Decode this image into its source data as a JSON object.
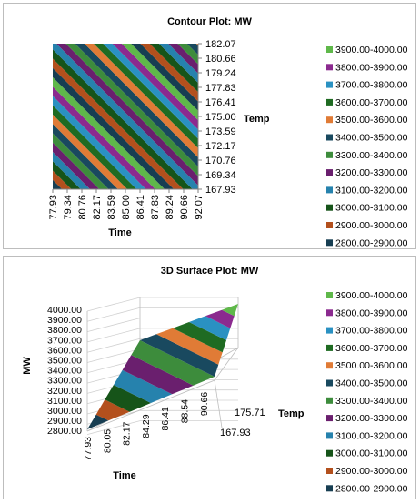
{
  "chart_data": [
    {
      "type": "contour",
      "title": "Contour Plot: MW",
      "xlabel": "Time",
      "ylabel": "Temp",
      "x_ticks": [
        "77.93",
        "79.34",
        "80.76",
        "82.17",
        "83.59",
        "85.00",
        "86.41",
        "87.83",
        "89.24",
        "90.66",
        "92.07"
      ],
      "y_ticks": [
        "182.07",
        "180.66",
        "179.24",
        "177.83",
        "176.41",
        "175.00",
        "173.59",
        "172.17",
        "170.76",
        "169.34",
        "167.93"
      ],
      "xlim": [
        77.93,
        92.07
      ],
      "ylim": [
        167.93,
        182.07
      ],
      "bands": [
        {
          "name": "3900.00-4000.00",
          "color": "#5fb84a"
        },
        {
          "name": "3800.00-3900.00",
          "color": "#8b2a8f"
        },
        {
          "name": "3700.00-3800.00",
          "color": "#2a91c2"
        },
        {
          "name": "3600.00-3700.00",
          "color": "#1f6b22"
        },
        {
          "name": "3500.00-3600.00",
          "color": "#e07b36"
        },
        {
          "name": "3400.00-3500.00",
          "color": "#19495f"
        },
        {
          "name": "3300.00-3400.00",
          "color": "#3d8c3c"
        },
        {
          "name": "3200.00-3300.00",
          "color": "#6a1f6e"
        },
        {
          "name": "3100.00-3200.00",
          "color": "#2682ad"
        },
        {
          "name": "3000.00-3100.00",
          "color": "#165419"
        },
        {
          "name": "2900.00-3000.00",
          "color": "#b3501d"
        },
        {
          "name": "2800.00-2900.00",
          "color": "#173e52"
        }
      ]
    },
    {
      "type": "surface",
      "title": "3D Surface Plot: MW",
      "xlabel": "Time",
      "ylabel": "Temp",
      "zlabel": "MW",
      "z_ticks": [
        "4000.00",
        "3900.00",
        "3800.00",
        "3700.00",
        "3600.00",
        "3500.00",
        "3400.00",
        "3300.00",
        "3200.00",
        "3100.00",
        "3000.00",
        "2900.00",
        "2800.00"
      ],
      "zlim": [
        2800,
        4000
      ],
      "x_ticks": [
        "77.93",
        "80.05",
        "82.17",
        "84.29",
        "86.41",
        "88.54",
        "90.66"
      ],
      "y_ticks": [
        "167.93",
        "175.71"
      ],
      "bands": [
        {
          "name": "3900.00-4000.00",
          "color": "#5fb84a"
        },
        {
          "name": "3800.00-3900.00",
          "color": "#8b2a8f"
        },
        {
          "name": "3700.00-3800.00",
          "color": "#2a91c2"
        },
        {
          "name": "3600.00-3700.00",
          "color": "#1f6b22"
        },
        {
          "name": "3500.00-3600.00",
          "color": "#e07b36"
        },
        {
          "name": "3400.00-3500.00",
          "color": "#19495f"
        },
        {
          "name": "3300.00-3400.00",
          "color": "#3d8c3c"
        },
        {
          "name": "3200.00-3300.00",
          "color": "#6a1f6e"
        },
        {
          "name": "3100.00-3200.00",
          "color": "#2682ad"
        },
        {
          "name": "3000.00-3100.00",
          "color": "#165419"
        },
        {
          "name": "2900.00-3000.00",
          "color": "#b3501d"
        },
        {
          "name": "2800.00-2900.00",
          "color": "#173e52"
        }
      ]
    }
  ]
}
